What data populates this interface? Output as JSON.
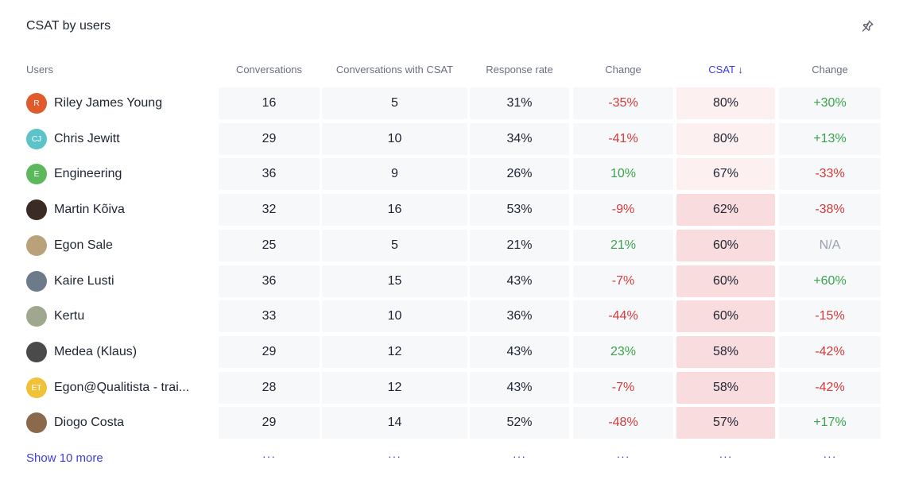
{
  "title": "CSAT by users",
  "headers": {
    "users": "Users",
    "conversations": "Conversations",
    "with_csat": "Conversations with CSAT",
    "response_rate": "Response rate",
    "change1": "Change",
    "csat": "CSAT ↓",
    "change2": "Change"
  },
  "rows": [
    {
      "name": "Riley James Young",
      "initials": "R",
      "avatar_color": "#e05a2b",
      "conversations": "16",
      "with_csat": "5",
      "response_rate": "31%",
      "change1": "-35%",
      "csat": "80%",
      "change2": "+30%"
    },
    {
      "name": "Chris Jewitt",
      "initials": "CJ",
      "avatar_color": "#5cc3c9",
      "conversations": "29",
      "with_csat": "10",
      "response_rate": "34%",
      "change1": "-41%",
      "csat": "80%",
      "change2": "+13%"
    },
    {
      "name": "Engineering",
      "initials": "E",
      "avatar_color": "#5cb85c",
      "conversations": "36",
      "with_csat": "9",
      "response_rate": "26%",
      "change1": "10%",
      "csat": "67%",
      "change2": "-33%"
    },
    {
      "name": "Martin Kõiva",
      "initials": "",
      "avatar_color": "#3a2c24",
      "conversations": "32",
      "with_csat": "16",
      "response_rate": "53%",
      "change1": "-9%",
      "csat": "62%",
      "change2": "-38%"
    },
    {
      "name": "Egon Sale",
      "initials": "",
      "avatar_color": "#b9a27a",
      "conversations": "25",
      "with_csat": "5",
      "response_rate": "21%",
      "change1": "21%",
      "csat": "60%",
      "change2": "N/A"
    },
    {
      "name": "Kaire Lusti",
      "initials": "",
      "avatar_color": "#6c7a8a",
      "conversations": "36",
      "with_csat": "15",
      "response_rate": "43%",
      "change1": "-7%",
      "csat": "60%",
      "change2": "+60%"
    },
    {
      "name": "Kertu",
      "initials": "",
      "avatar_color": "#9fa88e",
      "conversations": "33",
      "with_csat": "10",
      "response_rate": "36%",
      "change1": "-44%",
      "csat": "60%",
      "change2": "-15%"
    },
    {
      "name": "Medea (Klaus)",
      "initials": "",
      "avatar_color": "#4a4a4a",
      "conversations": "29",
      "with_csat": "12",
      "response_rate": "43%",
      "change1": "23%",
      "csat": "58%",
      "change2": "-42%"
    },
    {
      "name": "Egon@Qualitista - trai...",
      "initials": "ET",
      "avatar_color": "#f0c23a",
      "conversations": "28",
      "with_csat": "12",
      "response_rate": "43%",
      "change1": "-7%",
      "csat": "58%",
      "change2": "-42%"
    },
    {
      "name": "Diogo Costa",
      "initials": "",
      "avatar_color": "#8a6a4a",
      "conversations": "29",
      "with_csat": "14",
      "response_rate": "52%",
      "change1": "-48%",
      "csat": "57%",
      "change2": "+17%"
    }
  ],
  "show_more": "Show 10 more",
  "ellipsis": "···",
  "colors": {
    "accent": "#3d3ddf",
    "negative": "#d63a3a",
    "positive": "#3aa34a",
    "neutral": "#9aa0ab",
    "csat_light": "#fdf0f0",
    "csat_mid": "#f9dcdd"
  },
  "icons": {
    "pin": "pin-icon"
  }
}
